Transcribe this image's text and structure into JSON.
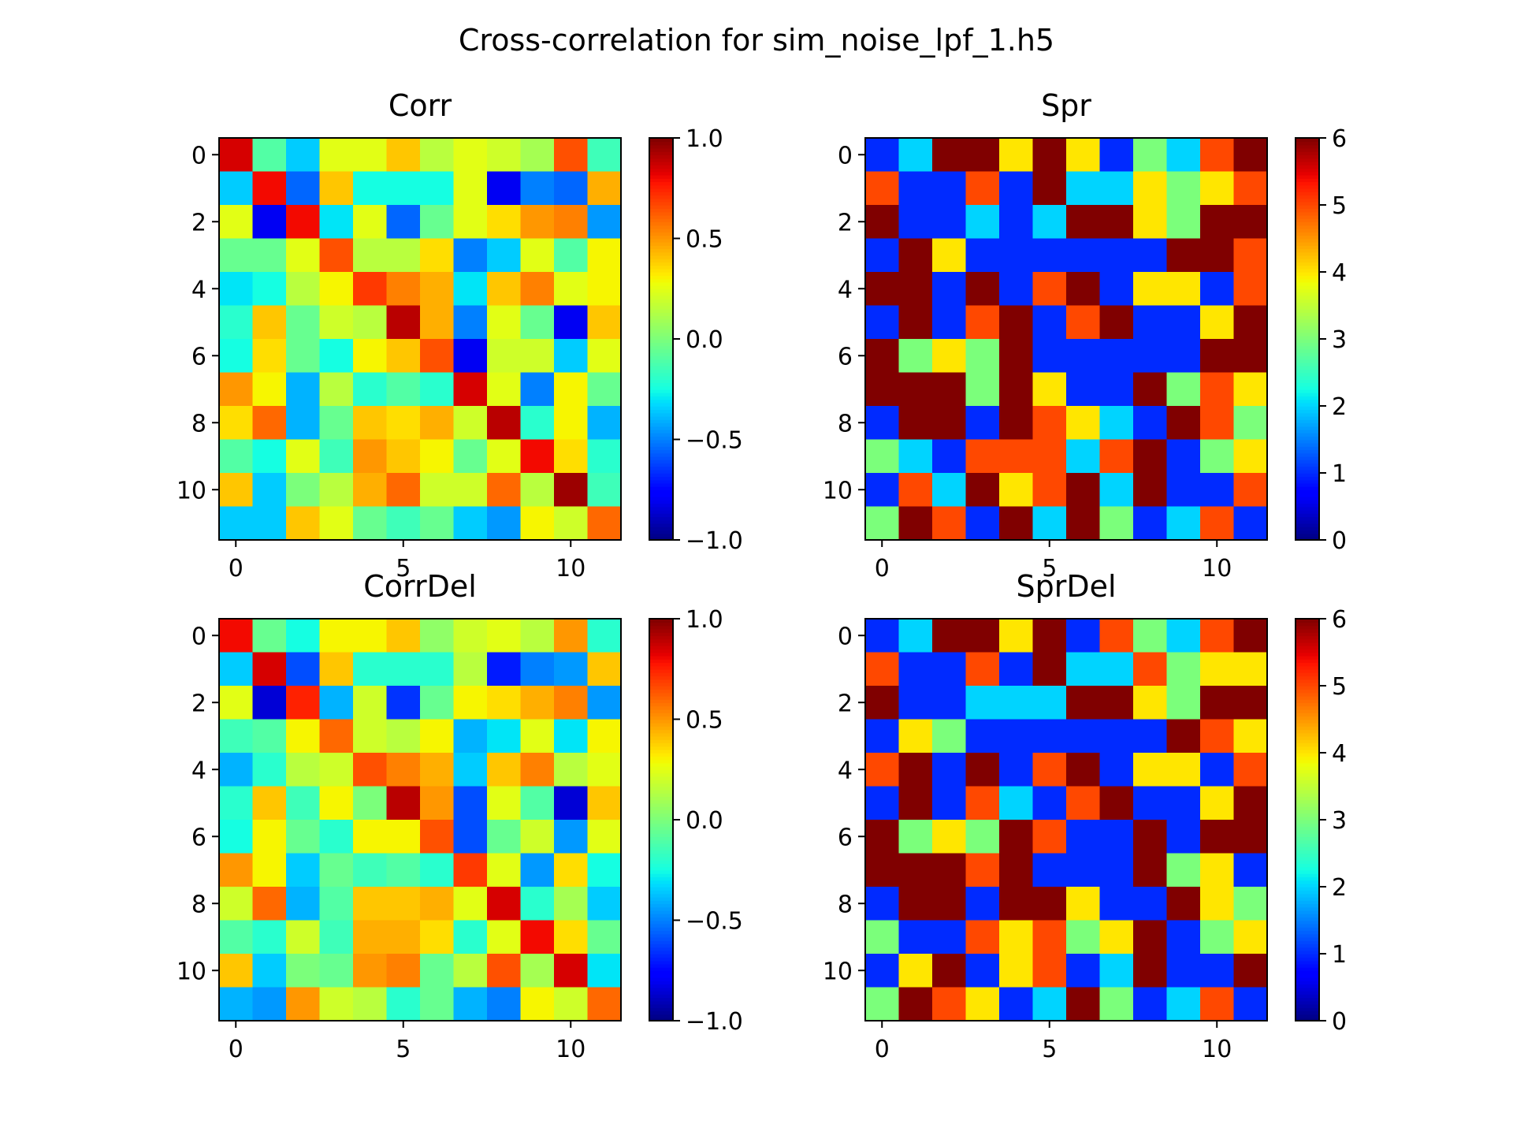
{
  "figure": {
    "suptitle": "Cross-correlation for sim_noise_lpf_1.h5"
  },
  "chart_data": [
    {
      "type": "heatmap",
      "title": "Corr",
      "colormap": "jet",
      "vmin": -1.0,
      "vmax": 1.0,
      "colorbar_ticks": [
        -1.0,
        -0.5,
        0.0,
        0.5,
        1.0
      ],
      "colorbar_tick_labels": [
        "−1.0",
        "−0.5",
        "0.0",
        "0.5",
        "1.0"
      ],
      "x_ticks": [
        0,
        5,
        10
      ],
      "y_ticks": [
        0,
        2,
        4,
        6,
        8,
        10
      ],
      "xlim": [
        -0.5,
        11.5
      ],
      "ylim": [
        11.5,
        -0.5
      ],
      "values": [
        [
          0.85,
          -0.1,
          -0.35,
          0.25,
          0.25,
          0.4,
          0.15,
          0.25,
          0.2,
          0.1,
          0.65,
          -0.15
        ],
        [
          -0.35,
          0.8,
          -0.55,
          0.4,
          -0.25,
          -0.25,
          -0.25,
          0.25,
          -0.8,
          -0.5,
          -0.55,
          0.45
        ],
        [
          0.25,
          -0.8,
          0.8,
          -0.3,
          0.25,
          -0.55,
          -0.05,
          0.25,
          0.35,
          0.5,
          0.55,
          -0.45
        ],
        [
          -0.05,
          -0.05,
          0.25,
          0.65,
          0.15,
          0.15,
          0.35,
          -0.5,
          -0.35,
          0.25,
          -0.1,
          0.3
        ],
        [
          -0.3,
          -0.25,
          0.15,
          0.3,
          0.7,
          0.55,
          0.45,
          -0.3,
          0.4,
          0.55,
          0.25,
          0.3
        ],
        [
          -0.2,
          0.4,
          -0.05,
          0.2,
          0.15,
          0.9,
          0.45,
          -0.5,
          0.25,
          -0.05,
          -0.8,
          0.4
        ],
        [
          -0.25,
          0.35,
          -0.05,
          -0.25,
          0.3,
          0.4,
          0.65,
          -0.8,
          0.2,
          0.2,
          -0.35,
          0.25
        ],
        [
          0.5,
          0.3,
          -0.4,
          0.15,
          -0.2,
          -0.1,
          -0.2,
          0.85,
          0.25,
          -0.5,
          0.3,
          -0.05
        ],
        [
          0.35,
          0.6,
          -0.4,
          -0.05,
          0.4,
          0.35,
          0.45,
          0.2,
          0.9,
          -0.2,
          0.3,
          -0.4
        ],
        [
          -0.1,
          -0.25,
          0.25,
          -0.15,
          0.5,
          0.4,
          0.3,
          -0.05,
          0.25,
          0.8,
          0.35,
          -0.2
        ],
        [
          0.4,
          -0.35,
          0.0,
          0.15,
          0.45,
          0.6,
          0.2,
          0.2,
          0.6,
          0.15,
          0.95,
          -0.15
        ],
        [
          -0.35,
          -0.35,
          0.4,
          0.25,
          -0.05,
          -0.15,
          -0.05,
          -0.35,
          -0.45,
          0.3,
          0.2,
          0.6
        ]
      ]
    },
    {
      "type": "heatmap",
      "title": "Spr",
      "colormap": "jet",
      "vmin": 0,
      "vmax": 6,
      "colorbar_ticks": [
        0,
        1,
        2,
        3,
        4,
        5,
        6
      ],
      "colorbar_tick_labels": [
        "0",
        "1",
        "2",
        "3",
        "4",
        "5",
        "6"
      ],
      "x_ticks": [
        0,
        5,
        10
      ],
      "y_ticks": [
        0,
        2,
        4,
        6,
        8,
        10
      ],
      "xlim": [
        -0.5,
        11.5
      ],
      "ylim": [
        11.5,
        -0.5
      ],
      "values": [
        [
          1,
          2,
          6,
          6,
          4,
          6,
          4,
          1,
          3,
          2,
          5,
          6
        ],
        [
          5,
          1,
          1,
          5,
          1,
          6,
          2,
          2,
          4,
          3,
          4,
          5
        ],
        [
          6,
          1,
          1,
          2,
          1,
          2,
          6,
          6,
          4,
          3,
          6,
          6
        ],
        [
          1,
          6,
          4,
          1,
          1,
          1,
          1,
          1,
          1,
          6,
          6,
          5
        ],
        [
          6,
          6,
          1,
          6,
          1,
          5,
          6,
          1,
          4,
          4,
          1,
          5
        ],
        [
          1,
          6,
          1,
          5,
          6,
          1,
          5,
          6,
          1,
          1,
          4,
          6
        ],
        [
          6,
          3,
          4,
          3,
          6,
          1,
          1,
          1,
          1,
          1,
          6,
          6
        ],
        [
          6,
          6,
          6,
          3,
          6,
          4,
          1,
          1,
          6,
          3,
          5,
          4
        ],
        [
          1,
          6,
          6,
          1,
          6,
          5,
          4,
          2,
          1,
          6,
          5,
          3
        ],
        [
          3,
          2,
          1,
          5,
          5,
          5,
          2,
          5,
          6,
          1,
          3,
          4
        ],
        [
          1,
          5,
          2,
          6,
          4,
          5,
          6,
          2,
          6,
          1,
          1,
          5
        ],
        [
          3,
          6,
          5,
          1,
          6,
          2,
          6,
          3,
          1,
          2,
          5,
          1
        ]
      ]
    },
    {
      "type": "heatmap",
      "title": "CorrDel",
      "colormap": "jet",
      "vmin": -1.0,
      "vmax": 1.0,
      "colorbar_ticks": [
        -1.0,
        -0.5,
        0.0,
        0.5,
        1.0
      ],
      "colorbar_tick_labels": [
        "−1.0",
        "−0.5",
        "0.0",
        "0.5",
        "1.0"
      ],
      "x_ticks": [
        0,
        5,
        10
      ],
      "y_ticks": [
        0,
        2,
        4,
        6,
        8,
        10
      ],
      "xlim": [
        -0.5,
        11.5
      ],
      "ylim": [
        11.5,
        -0.5
      ],
      "values": [
        [
          0.8,
          -0.05,
          -0.25,
          0.3,
          0.3,
          0.4,
          0.05,
          0.2,
          0.25,
          0.15,
          0.5,
          -0.2
        ],
        [
          -0.35,
          0.85,
          -0.6,
          0.4,
          -0.2,
          -0.2,
          -0.2,
          0.15,
          -0.7,
          -0.5,
          -0.45,
          0.4
        ],
        [
          0.25,
          -0.85,
          0.75,
          -0.4,
          0.2,
          -0.65,
          -0.05,
          0.3,
          0.35,
          0.45,
          0.55,
          -0.45
        ],
        [
          -0.15,
          -0.1,
          0.3,
          0.6,
          0.2,
          0.15,
          0.3,
          -0.4,
          -0.3,
          0.25,
          -0.3,
          0.3
        ],
        [
          -0.4,
          -0.2,
          0.15,
          0.2,
          0.65,
          0.55,
          0.45,
          -0.35,
          0.4,
          0.55,
          0.15,
          0.25
        ],
        [
          -0.2,
          0.4,
          -0.15,
          0.3,
          0.0,
          0.9,
          0.5,
          -0.6,
          0.25,
          -0.1,
          -0.85,
          0.4
        ],
        [
          -0.25,
          0.3,
          -0.05,
          -0.2,
          0.3,
          0.3,
          0.65,
          -0.6,
          -0.05,
          0.2,
          -0.45,
          0.25
        ],
        [
          0.5,
          0.3,
          -0.35,
          -0.05,
          -0.15,
          -0.1,
          -0.2,
          0.7,
          0.25,
          -0.45,
          0.35,
          -0.25
        ],
        [
          0.2,
          0.6,
          -0.4,
          -0.1,
          0.4,
          0.4,
          0.45,
          0.25,
          0.85,
          -0.2,
          0.1,
          -0.35
        ],
        [
          -0.1,
          -0.2,
          0.2,
          -0.15,
          0.45,
          0.45,
          0.35,
          -0.2,
          0.25,
          0.8,
          0.35,
          -0.05
        ],
        [
          0.4,
          -0.35,
          0.0,
          -0.05,
          0.5,
          0.55,
          -0.05,
          0.15,
          0.65,
          0.1,
          0.85,
          -0.3
        ],
        [
          -0.4,
          -0.45,
          0.5,
          0.2,
          0.15,
          -0.2,
          -0.05,
          -0.4,
          -0.5,
          0.3,
          0.2,
          0.6
        ]
      ]
    },
    {
      "type": "heatmap",
      "title": "SprDel",
      "colormap": "jet",
      "vmin": 0,
      "vmax": 6,
      "colorbar_ticks": [
        0,
        1,
        2,
        3,
        4,
        5,
        6
      ],
      "colorbar_tick_labels": [
        "0",
        "1",
        "2",
        "3",
        "4",
        "5",
        "6"
      ],
      "x_ticks": [
        0,
        5,
        10
      ],
      "y_ticks": [
        0,
        2,
        4,
        6,
        8,
        10
      ],
      "xlim": [
        -0.5,
        11.5
      ],
      "ylim": [
        11.5,
        -0.5
      ],
      "values": [
        [
          1,
          2,
          6,
          6,
          4,
          6,
          1,
          5,
          3,
          2,
          5,
          6
        ],
        [
          5,
          1,
          1,
          5,
          1,
          6,
          2,
          2,
          5,
          3,
          4,
          4
        ],
        [
          6,
          1,
          1,
          2,
          2,
          2,
          6,
          6,
          4,
          3,
          6,
          6
        ],
        [
          1,
          4,
          3,
          1,
          1,
          1,
          1,
          1,
          1,
          6,
          5,
          4
        ],
        [
          5,
          6,
          1,
          6,
          1,
          5,
          6,
          1,
          4,
          4,
          1,
          5
        ],
        [
          1,
          6,
          1,
          5,
          2,
          1,
          5,
          6,
          1,
          1,
          4,
          6
        ],
        [
          6,
          3,
          4,
          3,
          6,
          5,
          1,
          1,
          6,
          1,
          6,
          6
        ],
        [
          6,
          6,
          6,
          5,
          6,
          1,
          1,
          1,
          6,
          3,
          4,
          1
        ],
        [
          1,
          6,
          6,
          1,
          6,
          6,
          4,
          1,
          1,
          6,
          4,
          3
        ],
        [
          3,
          1,
          1,
          5,
          4,
          5,
          3,
          4,
          6,
          1,
          3,
          4
        ],
        [
          1,
          4,
          6,
          1,
          4,
          5,
          1,
          2,
          6,
          1,
          1,
          6
        ],
        [
          3,
          6,
          5,
          4,
          1,
          2,
          6,
          3,
          1,
          2,
          5,
          1
        ]
      ]
    }
  ]
}
